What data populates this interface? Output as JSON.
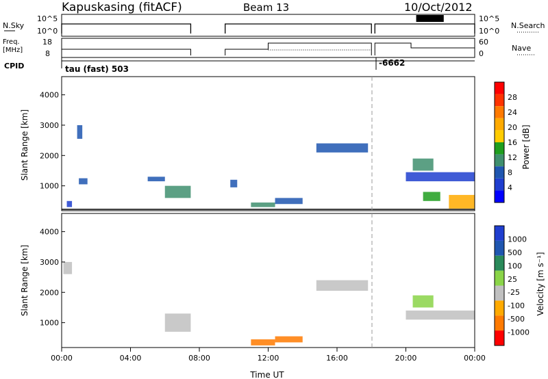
{
  "header": {
    "station": "Kapuskasing (fitACF)",
    "beam": "Beam 13",
    "date": "10/Oct/2012"
  },
  "noise_panel": {
    "left_label": "N.Sky",
    "right_label": "N.Search",
    "left_ticks": [
      "10^5",
      "10^0"
    ],
    "right_ticks": [
      "10^5",
      "10^0"
    ]
  },
  "freq_panel": {
    "left_label_1": "Freq.",
    "left_label_2": "[MHz]",
    "right_label": "Nave",
    "left_ticks": [
      "18",
      "8"
    ],
    "right_ticks": [
      "60",
      "0"
    ]
  },
  "cpid_panel": {
    "label": "CPID",
    "mode": "tau (fast) 503",
    "mode2": "-6662"
  },
  "time_axis": {
    "label": "Time UT",
    "ticks": [
      "00:00",
      "04:00",
      "08:00",
      "12:00",
      "16:00",
      "20:00",
      "00:00"
    ]
  },
  "power_colorbar": {
    "label": "Power [dB]",
    "ticks": [
      "28",
      "24",
      "20",
      "16",
      "12",
      "8",
      "4"
    ],
    "colors": [
      "#ff0000",
      "#ff3300",
      "#ff7a00",
      "#ffaa00",
      "#ffcc00",
      "#1e9e1e",
      "#3f8f6e",
      "#1f56b0",
      "#1f3ecf",
      "#0000ff"
    ]
  },
  "velocity_colorbar": {
    "label": "Velocity [m s⁻¹]",
    "ticks": [
      "1000",
      "500",
      "100",
      "25",
      "-25",
      "-100",
      "-500",
      "-1000"
    ],
    "colors": [
      "#1f3ecf",
      "#1f56b0",
      "#2a8a5a",
      "#8ad448",
      "#c0c0c0",
      "#ffaa00",
      "#ff7a00",
      "#ff0000"
    ]
  },
  "chart_data": [
    {
      "type": "heatmap",
      "title": "",
      "xlabel": "Time UT",
      "ylabel": "Slant Range [km]",
      "y_ticks": [
        "1000",
        "2000",
        "3000",
        "4000"
      ],
      "xlim_hours": [
        0,
        24
      ],
      "ylim_km": [
        180,
        4600
      ],
      "colorbar": "Power [dB]",
      "regions": [
        {
          "t0": 0.9,
          "t1": 1.2,
          "r0": 2550,
          "r1": 3000,
          "value": 6
        },
        {
          "t0": 0.3,
          "t1": 0.6,
          "r0": 300,
          "r1": 500,
          "value": 5
        },
        {
          "t0": 1.0,
          "t1": 1.5,
          "r0": 1050,
          "r1": 1250,
          "value": 6
        },
        {
          "t0": 5.0,
          "t1": 6.0,
          "r0": 1150,
          "r1": 1300,
          "value": 6
        },
        {
          "t0": 6.0,
          "t1": 7.5,
          "r0": 600,
          "r1": 1000,
          "value": 10
        },
        {
          "t0": 9.8,
          "t1": 10.2,
          "r0": 950,
          "r1": 1200,
          "value": 8
        },
        {
          "t0": 11.0,
          "t1": 12.4,
          "r0": 300,
          "r1": 450,
          "value": 9
        },
        {
          "t0": 12.4,
          "t1": 14.0,
          "r0": 400,
          "r1": 600,
          "value": 6
        },
        {
          "t0": 14.8,
          "t1": 17.8,
          "r0": 2100,
          "r1": 2400,
          "value": 6
        },
        {
          "t0": 20.0,
          "t1": 24.0,
          "r0": 1150,
          "r1": 1450,
          "value": 5
        },
        {
          "t0": 20.4,
          "t1": 21.6,
          "r0": 1500,
          "r1": 1900,
          "value": 10
        },
        {
          "t0": 21.0,
          "t1": 22.0,
          "r0": 500,
          "r1": 800,
          "value": 14
        },
        {
          "t0": 22.5,
          "t1": 24.0,
          "r0": 250,
          "r1": 700,
          "value": 20
        }
      ]
    },
    {
      "type": "heatmap",
      "title": "",
      "xlabel": "Time UT",
      "ylabel": "Slant Range [km]",
      "y_ticks": [
        "1000",
        "2000",
        "3000",
        "4000"
      ],
      "xlim_hours": [
        0,
        24
      ],
      "ylim_km": [
        180,
        4600
      ],
      "colorbar": "Velocity [m s⁻¹]",
      "regions": [
        {
          "t0": 0.1,
          "t1": 0.6,
          "r0": 2600,
          "r1": 3000,
          "value": 0
        },
        {
          "t0": 6.0,
          "t1": 7.5,
          "r0": 700,
          "r1": 1300,
          "value": 0
        },
        {
          "t0": 11.0,
          "t1": 12.4,
          "r0": 250,
          "r1": 450,
          "value": -150
        },
        {
          "t0": 12.4,
          "t1": 14.0,
          "r0": 350,
          "r1": 550,
          "value": -120
        },
        {
          "t0": 14.8,
          "t1": 17.8,
          "r0": 2050,
          "r1": 2400,
          "value": 0
        },
        {
          "t0": 20.0,
          "t1": 24.0,
          "r0": 1100,
          "r1": 1400,
          "value": 0
        },
        {
          "t0": 20.4,
          "t1": 21.6,
          "r0": 1500,
          "r1": 1900,
          "value": 60
        }
      ]
    }
  ]
}
